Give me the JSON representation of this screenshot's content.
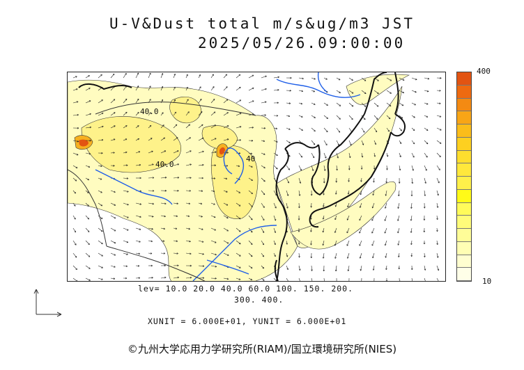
{
  "title": {
    "line1": "U-V&Dust total m/s&ug/m3 JST",
    "line2": "2025/05/26.09:00:00"
  },
  "colorbar": {
    "max_label": "400",
    "min_label": "10",
    "colors": [
      "#e25412",
      "#ee6a10",
      "#f48a12",
      "#f8a516",
      "#fbbd1a",
      "#fdd020",
      "#fede2e",
      "#ffe83c",
      "#fff04a",
      "#fffa18",
      "#fffb5a",
      "#fffc7a",
      "#fffd98",
      "#fffeb4",
      "#fffed0",
      "#ffffe8"
    ]
  },
  "contour_labels": [
    "40.0",
    "40.0",
    "40"
  ],
  "levels_line1": "lev= 10.0 20.0 40.0 60.0 100. 150. 200.",
  "levels_line2": "300. 400.",
  "units": "XUNIT = 6.000E+01, YUNIT = 6.000E+01",
  "copyright": "©九州大学応用力学研究所(RIAM)/国立環境研究所(NIES)",
  "colors": {
    "dust_light": "#fffcc0",
    "dust_mid": "#fef28a",
    "dust_high": "#f6b020",
    "dust_peak": "#e25412",
    "coast": "#111111",
    "river": "#1f5fe8",
    "border": "#333333"
  }
}
